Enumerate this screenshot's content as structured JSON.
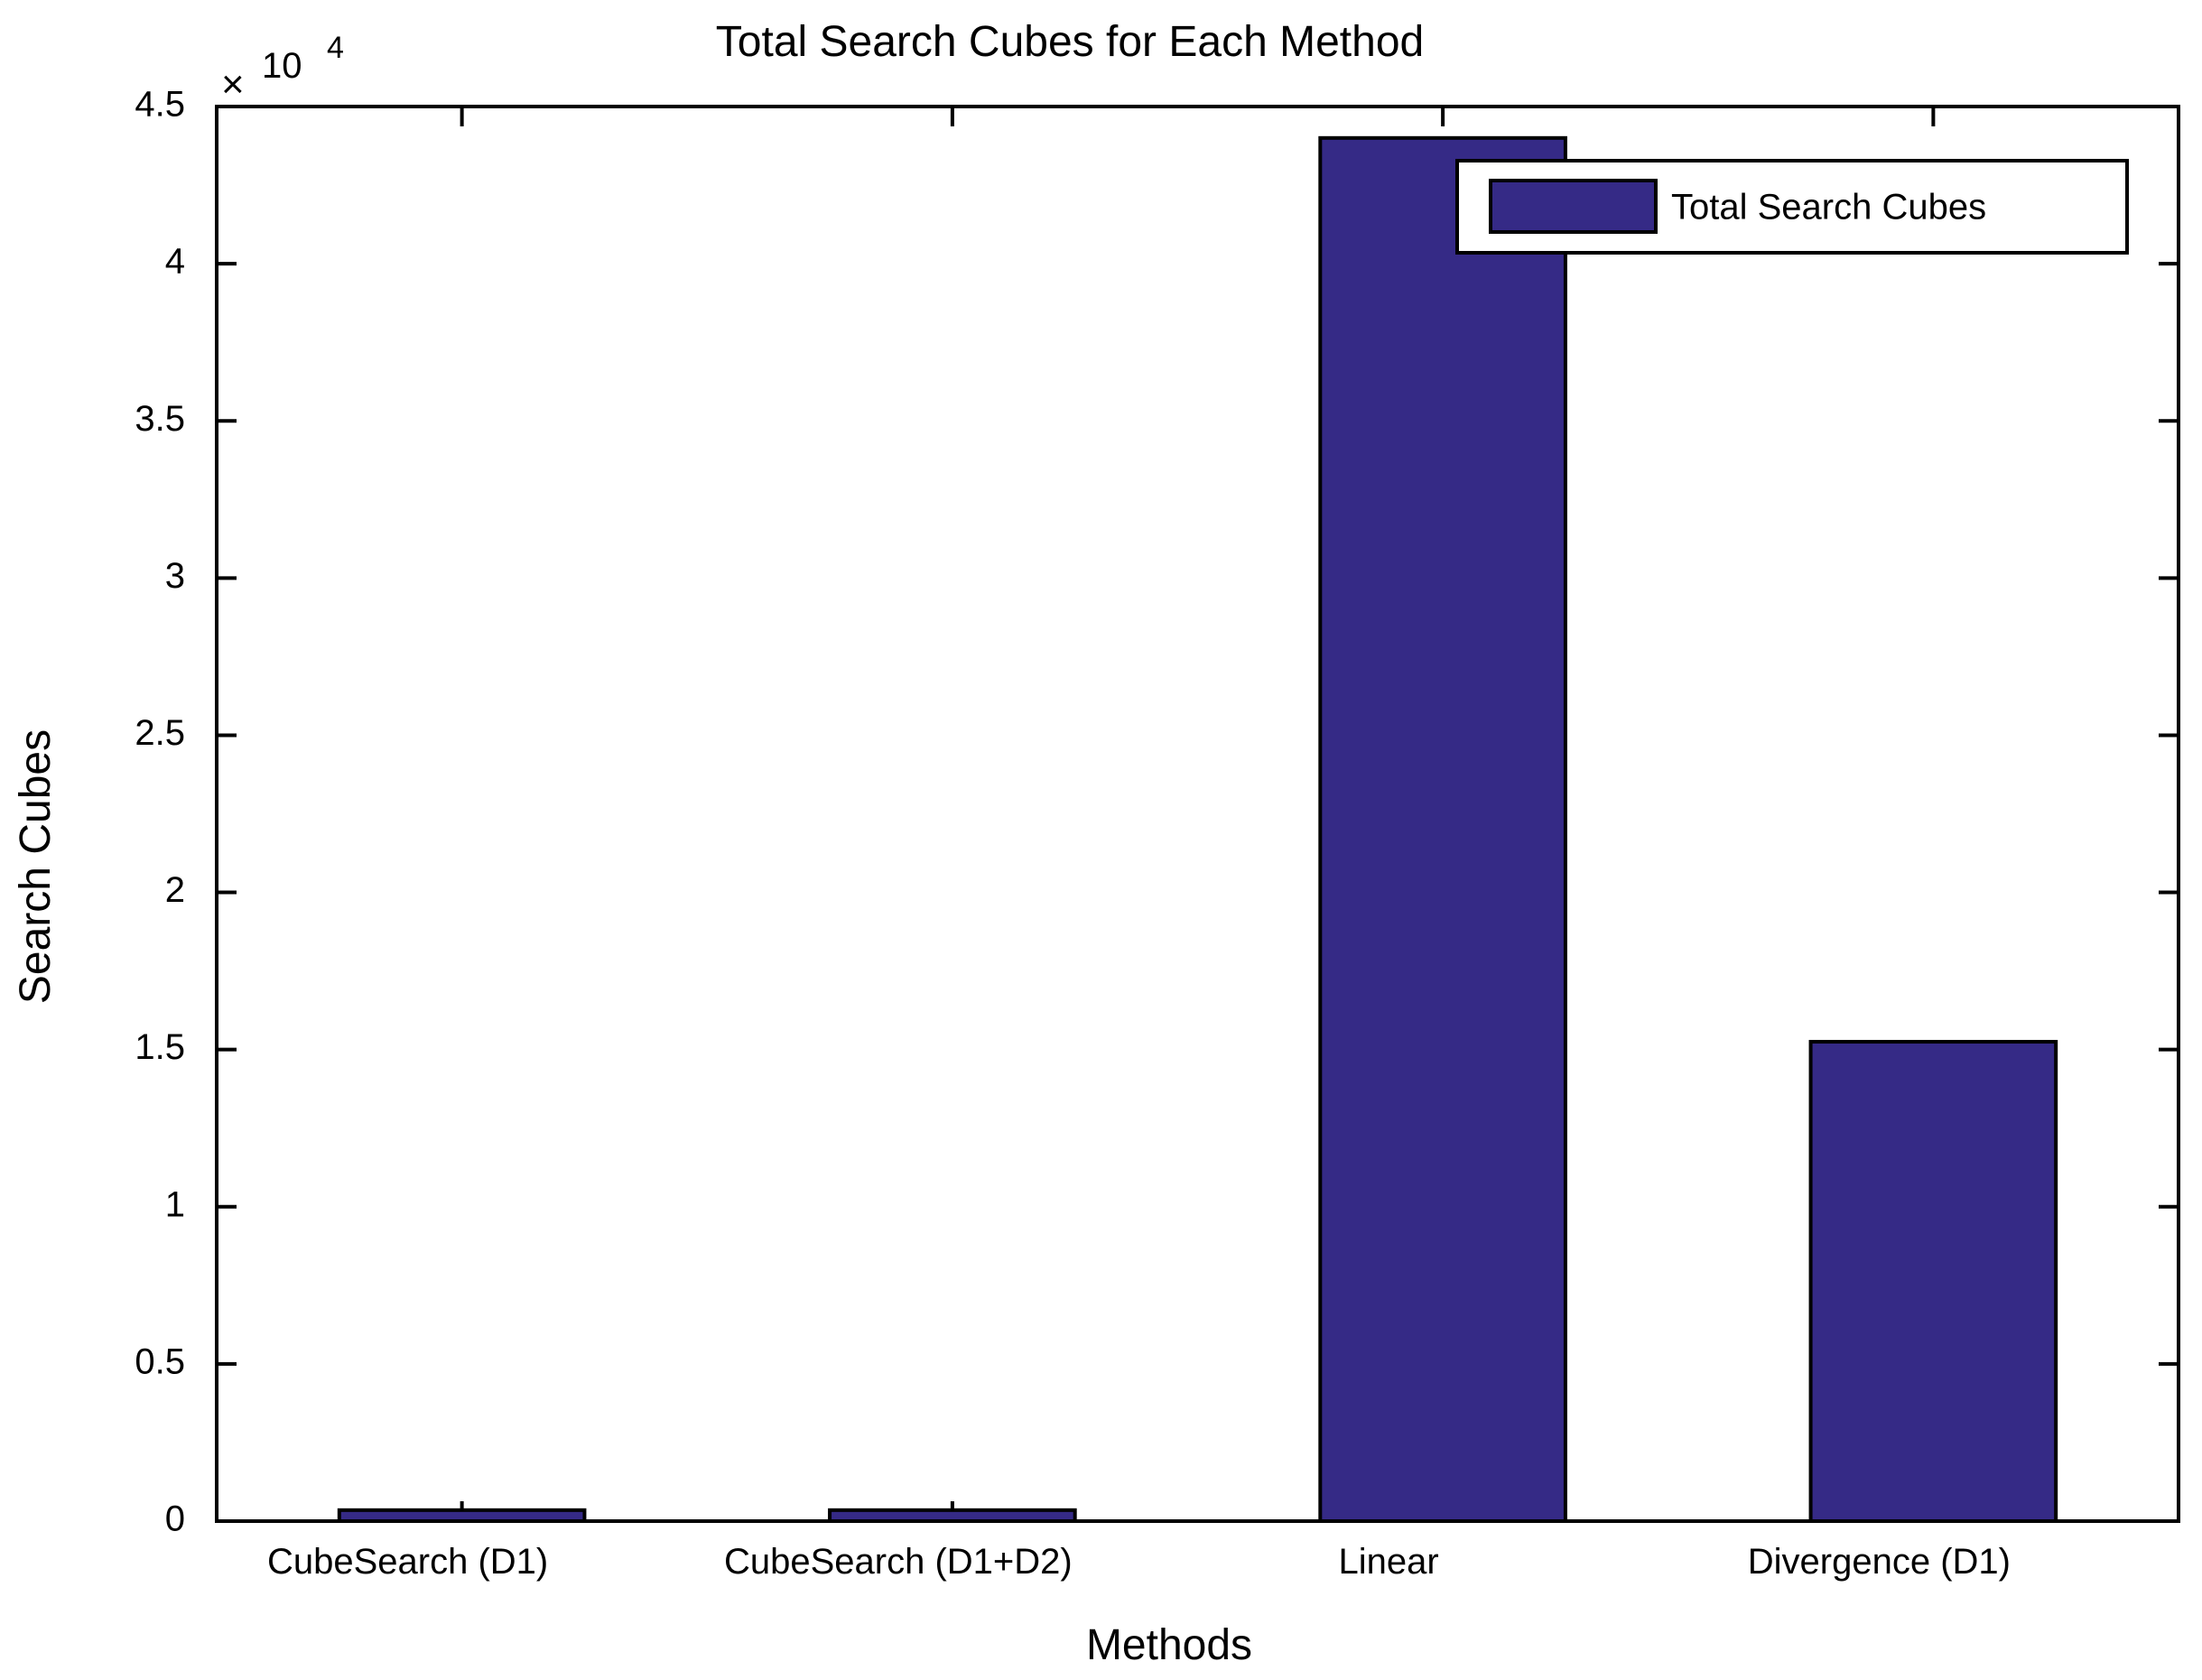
{
  "chart_data": {
    "type": "bar",
    "title": "Total Search Cubes for Each Method",
    "xlabel": "Methods",
    "ylabel": "Search Cubes",
    "exponent_multiplier": "×",
    "exponent_base": "10",
    "exponent_power": "4",
    "categories": [
      "CubeSearch (D1)",
      "CubeSearch (D1+D2)",
      "Linear",
      "Divergence (D1)"
    ],
    "series": [
      {
        "name": "Total Search Cubes",
        "values": [
          350,
          350,
          44000,
          15250
        ]
      }
    ],
    "ylim": [
      0,
      45000
    ],
    "yticks": [
      0,
      5000,
      10000,
      15000,
      20000,
      25000,
      30000,
      35000,
      40000,
      45000
    ],
    "ytick_labels": [
      "0",
      "0.5",
      "1",
      "1.5",
      "2",
      "2.5",
      "3",
      "3.5",
      "4",
      "4.5"
    ],
    "grid": false,
    "legend_position": "top-right",
    "bar_color": "#352a86",
    "edge_color": "#000000"
  }
}
